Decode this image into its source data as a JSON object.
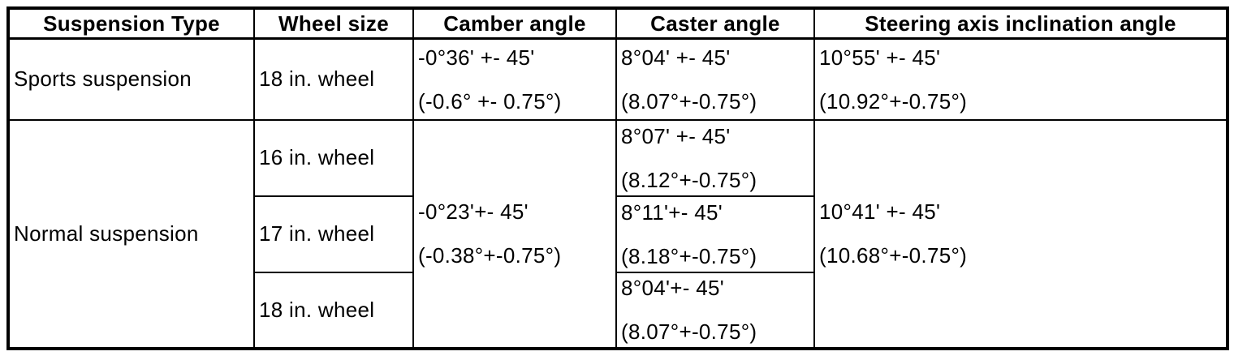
{
  "colors": {
    "border": "#000000",
    "text": "#000000",
    "background": "#ffffff"
  },
  "table": {
    "headers": {
      "suspension_type": "Suspension Type",
      "wheel_size": "Wheel size",
      "camber_angle": "Camber angle",
      "caster_angle": "Caster angle",
      "steering_axis": "Steering axis inclination angle"
    },
    "sports": {
      "suspension": "Sports suspension",
      "wheel": "18 in. wheel",
      "camber": [
        "-0°36' +- 45'",
        "(-0.6° +- 0.75°)"
      ],
      "caster": [
        "8°04' +- 45'",
        "(8.07°+-0.75°)"
      ],
      "steering": [
        "10°55' +- 45'",
        "(10.92°+-0.75°)"
      ]
    },
    "normal": {
      "suspension": "Normal suspension",
      "camber": [
        "-0°23'+- 45'",
        "(-0.38°+-0.75°)"
      ],
      "steering": [
        "10°41' +- 45'",
        "(10.68°+-0.75°)"
      ],
      "wheels": [
        {
          "wheel": "16 in. wheel",
          "caster": [
            "8°07' +- 45'",
            "(8.12°+-0.75°)"
          ]
        },
        {
          "wheel": "17 in. wheel",
          "caster": [
            "8°11'+- 45'",
            "(8.18°+-0.75°)"
          ]
        },
        {
          "wheel": "18 in. wheel",
          "caster": [
            "8°04'+- 45'",
            "(8.07°+-0.75°)"
          ]
        }
      ]
    }
  }
}
